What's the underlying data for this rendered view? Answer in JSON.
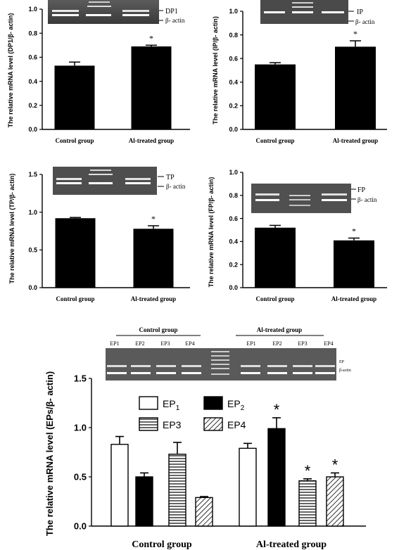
{
  "chart_data": [
    {
      "type": "bar",
      "title": "",
      "xlabel": "",
      "ylabel": "The relative mRNA level (DP1/β- actin)",
      "ylim": [
        0,
        1.0
      ],
      "yticks": [
        "0.0",
        "0.2",
        "0.4",
        "0.6",
        "0.8",
        "1.0"
      ],
      "categories": [
        "Control group",
        "Al-treated group"
      ],
      "values": [
        0.53,
        0.69
      ],
      "errors": [
        0.03,
        0.01
      ],
      "significance": [
        "",
        "*"
      ],
      "gel_labels": [
        "DP1",
        "β- actin"
      ],
      "bar_color": "#000000"
    },
    {
      "type": "bar",
      "title": "",
      "xlabel": "",
      "ylabel": "The relative mRNA level (IP/β- actin)",
      "ylim": [
        0,
        1.0
      ],
      "yticks": [
        "0.0",
        "0.2",
        "0.4",
        "0.6",
        "0.8",
        "1.0"
      ],
      "categories": [
        "Control group",
        "Al-treated group"
      ],
      "values": [
        0.55,
        0.7
      ],
      "errors": [
        0.015,
        0.05
      ],
      "significance": [
        "",
        "*"
      ],
      "gel_labels": [
        "IP",
        "β- actin"
      ],
      "bar_color": "#000000"
    },
    {
      "type": "bar",
      "title": "",
      "xlabel": "",
      "ylabel": "The relative mRNA level (TP/β- actin)",
      "ylim": [
        0,
        1.5
      ],
      "yticks": [
        "0.0",
        "0.5",
        "1.0",
        "1.5"
      ],
      "categories": [
        "Control group",
        "Al-treated group"
      ],
      "values": [
        0.92,
        0.78
      ],
      "errors": [
        0.01,
        0.04
      ],
      "significance": [
        "",
        "*"
      ],
      "gel_labels": [
        "TP",
        "β- actin"
      ],
      "bar_color": "#000000"
    },
    {
      "type": "bar",
      "title": "",
      "xlabel": "",
      "ylabel": "The relative mRNA level (FP/β- actin)",
      "ylim": [
        0,
        1.0
      ],
      "yticks": [
        "0.0",
        "0.2",
        "0.4",
        "0.6",
        "0.8",
        "1.0"
      ],
      "categories": [
        "Control group",
        "Al-treated group"
      ],
      "values": [
        0.52,
        0.41
      ],
      "errors": [
        0.02,
        0.02
      ],
      "significance": [
        "",
        "*"
      ],
      "gel_labels": [
        "FP",
        "β- actin"
      ],
      "bar_color": "#000000"
    },
    {
      "type": "bar",
      "title": "",
      "xlabel": "",
      "ylabel": "The relative mRNA level (EPs/β- actin)",
      "ylim": [
        0,
        1.5
      ],
      "yticks": [
        "0.0",
        "0.5",
        "1.0",
        "1.5"
      ],
      "categories": [
        "Control group",
        "Al-treated group"
      ],
      "series": [
        {
          "name": "EP1",
          "values": [
            0.83,
            0.79
          ],
          "errors": [
            0.08,
            0.05
          ],
          "significance": [
            "",
            ""
          ],
          "pattern": "white"
        },
        {
          "name": "EP2",
          "values": [
            0.5,
            0.99
          ],
          "errors": [
            0.04,
            0.11
          ],
          "significance": [
            "",
            "*"
          ],
          "pattern": "black"
        },
        {
          "name": "EP3",
          "values": [
            0.73,
            0.46
          ],
          "errors": [
            0.12,
            0.02
          ],
          "significance": [
            "",
            "*"
          ],
          "pattern": "hlines"
        },
        {
          "name": "EP4",
          "values": [
            0.29,
            0.5
          ],
          "errors": [
            0.01,
            0.04
          ],
          "significance": [
            "",
            "*"
          ],
          "pattern": "diag"
        }
      ],
      "legend_entries": [
        {
          "label": "EP",
          "sub": "1"
        },
        {
          "label": "EP",
          "sub": "2"
        },
        {
          "label": "EP3",
          "sub": ""
        },
        {
          "label": "EP4",
          "sub": ""
        }
      ],
      "legend_position": "top",
      "gel_group_labels": [
        "Control group",
        "Al-treated group"
      ],
      "gel_lane_labels": [
        "EP1",
        "EP2",
        "EP3",
        "EP4",
        "EP1",
        "EP2",
        "EP3",
        "EP4"
      ],
      "gel_labels": [
        "EP",
        "β-actin"
      ]
    }
  ]
}
